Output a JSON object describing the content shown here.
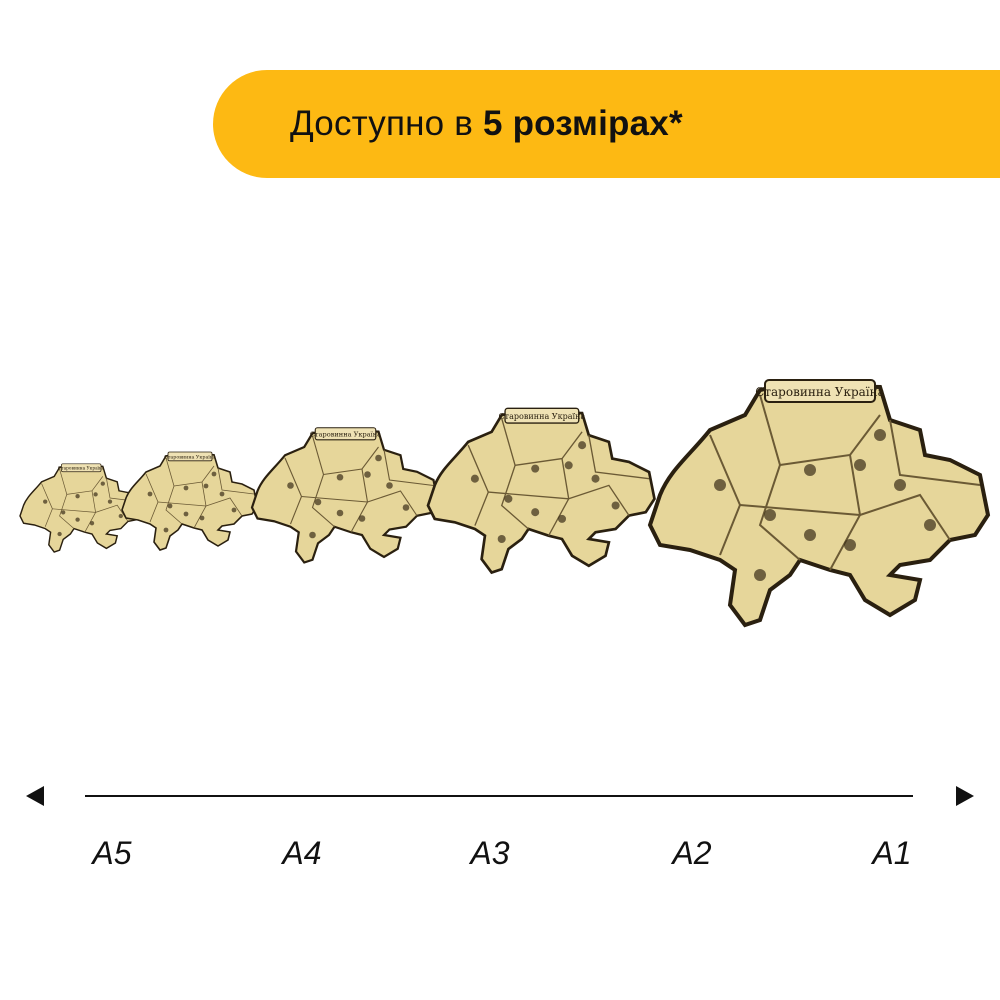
{
  "banner": {
    "text_prefix": "Доступно в ",
    "text_bold": "5 розмірах",
    "text_suffix": "*",
    "color": "#fdb913"
  },
  "maps": [
    {
      "size": "A5",
      "title_lettering": "Старовинна Україна"
    },
    {
      "size": "A4",
      "title_lettering": "Старовинна Україна"
    },
    {
      "size": "A3",
      "title_lettering": "Старовинна Україна"
    },
    {
      "size": "A2",
      "title_lettering": "Старовинна Україна"
    },
    {
      "size": "A1",
      "title_lettering": "Старовинна Україна"
    }
  ],
  "scale": {
    "labels": [
      "A5",
      "A4",
      "A3",
      "A2",
      "A1"
    ],
    "left_arrow_icon": "triangle-left-icon",
    "right_arrow_icon": "triangle-right-icon"
  },
  "colors": {
    "map_fill": "#e6d69a",
    "map_outline": "#2a2010",
    "map_detail": "#6b5a35"
  }
}
